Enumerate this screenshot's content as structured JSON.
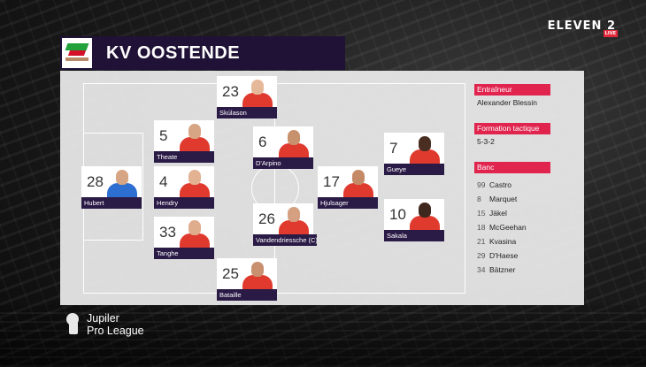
{
  "broadcast": {
    "logo": "ELEVEN 2",
    "badge": "LIVE"
  },
  "team": {
    "name": "KV OOSTENDE",
    "logo_icon": "kv-oostende-crest-icon"
  },
  "players": [
    {
      "number": "23",
      "name": "Skúlason"
    },
    {
      "number": "5",
      "name": "Theate"
    },
    {
      "number": "6",
      "name": "D'Arpino"
    },
    {
      "number": "7",
      "name": "Gueye"
    },
    {
      "number": "28",
      "name": "Hubert"
    },
    {
      "number": "4",
      "name": "Hendry"
    },
    {
      "number": "17",
      "name": "Hjulsager"
    },
    {
      "number": "26",
      "name": "Vandendriessche (C)"
    },
    {
      "number": "10",
      "name": "Sakala"
    },
    {
      "number": "33",
      "name": "Tanghe"
    },
    {
      "number": "25",
      "name": "Bataille"
    }
  ],
  "info": {
    "coach_label": "Entraîneur",
    "coach": "Alexander Blessin",
    "formation_label": "Formation tactique",
    "formation": "5-3-2",
    "bench_label": "Banc"
  },
  "bench": [
    {
      "number": "99",
      "name": "Castro"
    },
    {
      "number": "8",
      "name": "Marquet"
    },
    {
      "number": "15",
      "name": "Jäkel"
    },
    {
      "number": "18",
      "name": "McGeehan"
    },
    {
      "number": "21",
      "name": "Kvasina"
    },
    {
      "number": "29",
      "name": "D'Haese"
    },
    {
      "number": "34",
      "name": "Bätzner"
    }
  ],
  "league": {
    "line1": "Jupiler",
    "line2": "Pro League",
    "icon": "lion-icon"
  },
  "colors": {
    "accent": "#e0244d",
    "header_bg": "#1f1236",
    "name_bar": "#2a1a46",
    "kit_red": "#e03a2e",
    "keeper_blue": "#2d6fd1"
  }
}
